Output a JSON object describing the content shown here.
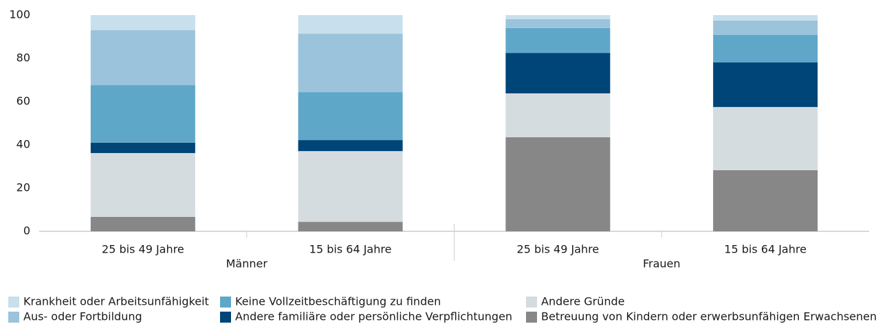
{
  "chart_data": {
    "type": "stacked_bar",
    "groups": [
      {
        "name": "Männer",
        "categories": [
          "25 bis 49 Jahre",
          "15 bis 64 Jahre"
        ]
      },
      {
        "name": "Frauen",
        "categories": [
          "25 bis 49 Jahre",
          "15 bis 64 Jahre"
        ]
      }
    ],
    "series": [
      {
        "name": "Krankheit oder Arbeitsunfähigkeit",
        "color": "#c8dfec",
        "values": [
          7.0,
          8.6,
          1.9,
          2.5
        ]
      },
      {
        "name": "Aus- oder Fortbildung",
        "color": "#9cc3dc",
        "values": [
          25.4,
          27.0,
          4.1,
          6.7
        ]
      },
      {
        "name": "Keine Vollzeitbeschäftigung zu finden",
        "color": "#5fa7c8",
        "values": [
          26.6,
          22.2,
          11.5,
          12.7
        ]
      },
      {
        "name": "Andere familiäre oder persönliche Verpflichtungen",
        "color": "#004577",
        "values": [
          4.8,
          5.1,
          18.7,
          20.6
        ]
      },
      {
        "name": "Andere Gründe",
        "color": "#d5dce0",
        "values": [
          29.5,
          32.7,
          20.3,
          29.2
        ]
      },
      {
        "name": "Betreuung von Kindern oder erwerbsunfähigen Erwachsenen",
        "color": "#878787",
        "values": [
          6.7,
          4.4,
          43.5,
          28.3
        ]
      }
    ],
    "ylim": [
      0,
      100
    ],
    "yticks": [
      0,
      20,
      40,
      60,
      80,
      100
    ]
  }
}
